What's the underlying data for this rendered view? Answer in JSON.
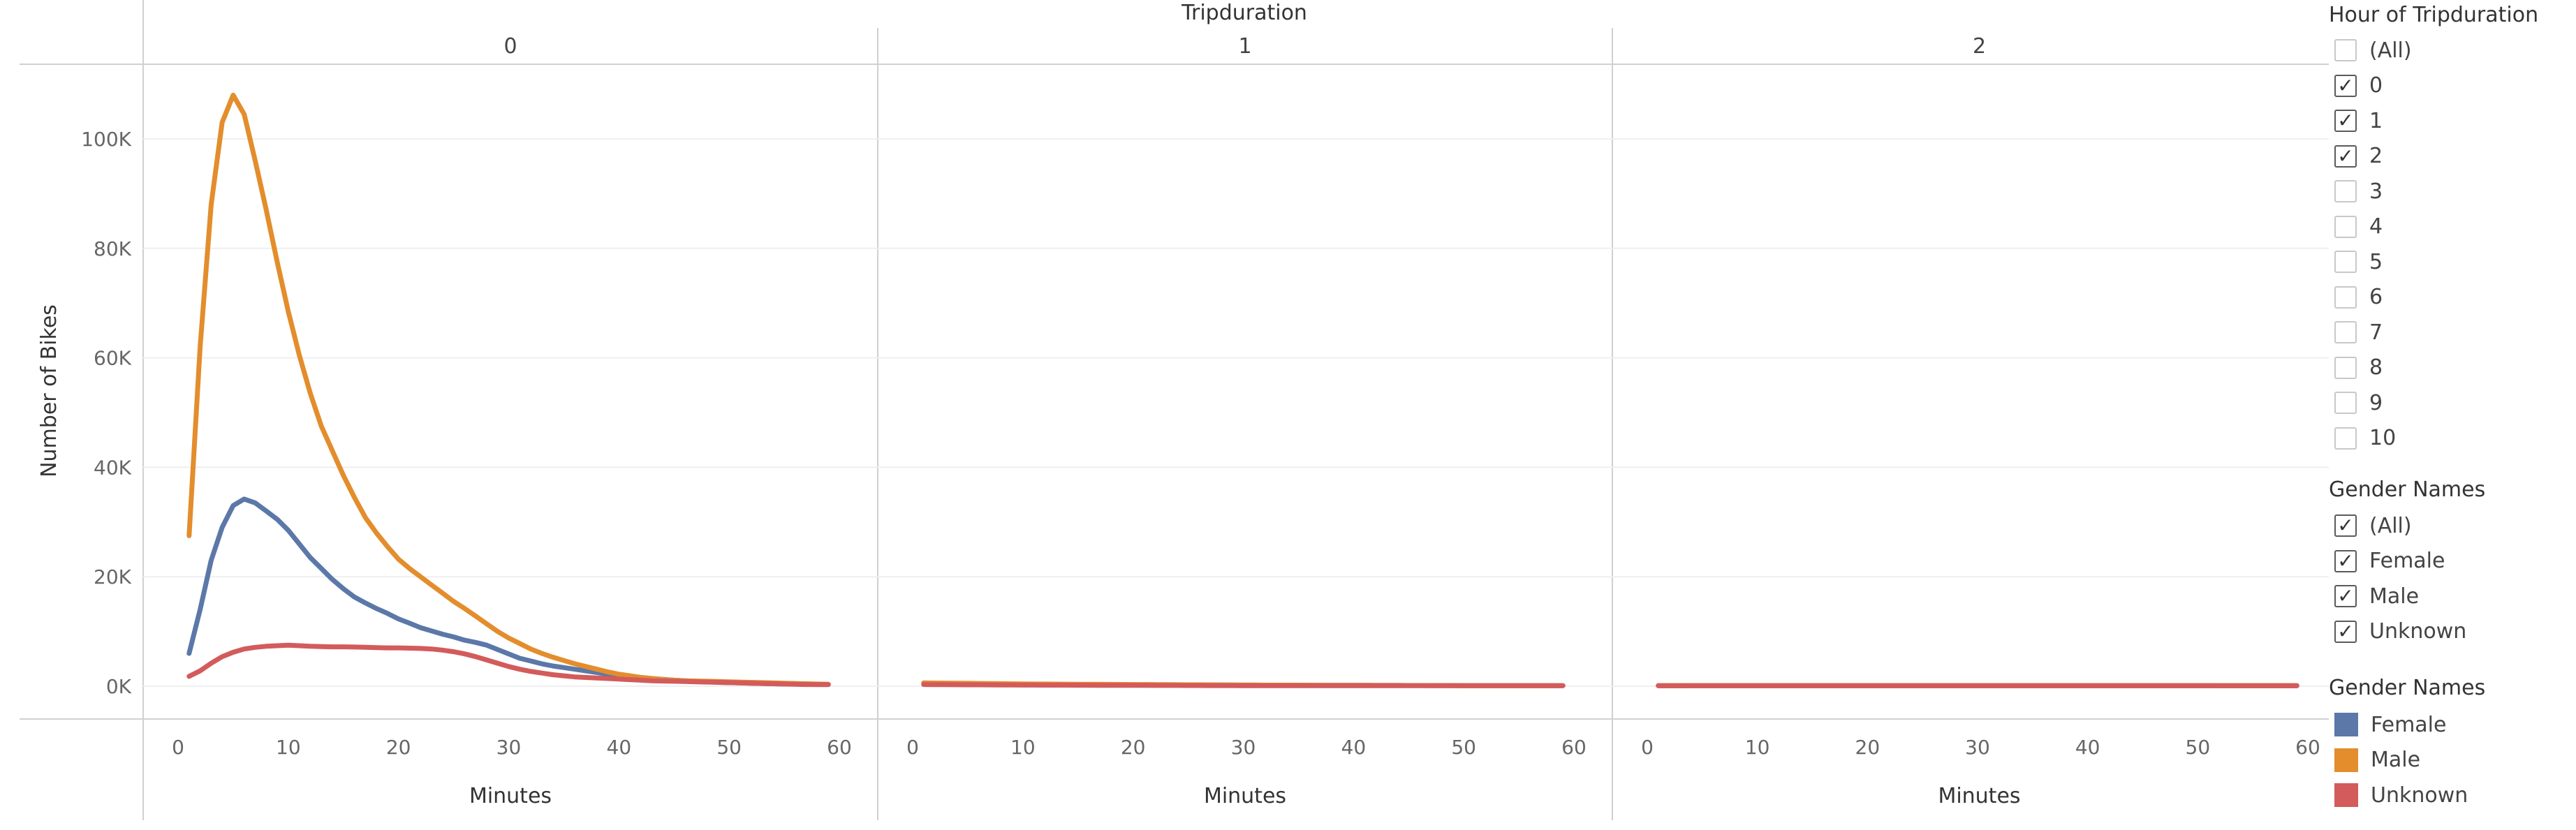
{
  "chart_data": {
    "type": "line",
    "title": "Tripduration",
    "xlabel": "Minutes",
    "ylabel": "Number of Bikes",
    "ylim": [
      0,
      110000
    ],
    "xlim": [
      0,
      60
    ],
    "y_ticks": [
      0,
      20000,
      40000,
      60000,
      80000,
      100000
    ],
    "y_tick_labels": [
      "0K",
      "20K",
      "40K",
      "60K",
      "80K",
      "100K"
    ],
    "x_ticks": [
      0,
      10,
      20,
      30,
      40,
      50,
      60
    ],
    "x_tick_labels": [
      "0",
      "10",
      "20",
      "30",
      "40",
      "50",
      "60"
    ],
    "panels": [
      "0",
      "1",
      "2"
    ],
    "x": [
      1,
      2,
      3,
      4,
      5,
      6,
      7,
      8,
      9,
      10,
      11,
      12,
      13,
      14,
      15,
      16,
      17,
      18,
      19,
      20,
      21,
      22,
      23,
      24,
      25,
      26,
      27,
      28,
      29,
      30,
      31,
      32,
      33,
      34,
      35,
      36,
      37,
      38,
      39,
      40,
      41,
      42,
      43,
      44,
      45,
      46,
      47,
      48,
      49,
      50,
      51,
      52,
      53,
      54,
      55,
      56,
      57,
      58,
      59
    ],
    "series": [
      {
        "name": "Female",
        "panel_values": [
          [
            6000,
            14000,
            23000,
            29000,
            33000,
            34200,
            33500,
            32000,
            30500,
            28500,
            26000,
            23500,
            21500,
            19500,
            17800,
            16300,
            15200,
            14200,
            13300,
            12300,
            11500,
            10700,
            10100,
            9500,
            9000,
            8400,
            8000,
            7500,
            6700,
            5900,
            5100,
            4600,
            4100,
            3700,
            3400,
            3100,
            2800,
            2500,
            2200,
            2000,
            1800,
            1600,
            1400,
            1250,
            1100,
            1000,
            900,
            800,
            700,
            650,
            600,
            550,
            500,
            450,
            400,
            400,
            350,
            300,
            300
          ],
          [
            500,
            480,
            460,
            440,
            420,
            400,
            390,
            380,
            370,
            360,
            350,
            340,
            330,
            320,
            310,
            300,
            290,
            280,
            270,
            260,
            250,
            245,
            240,
            235,
            230,
            225,
            220,
            215,
            210,
            205,
            200,
            195,
            190,
            185,
            180,
            175,
            170,
            165,
            160,
            155,
            150,
            145,
            140,
            135,
            130,
            125,
            120,
            115,
            110,
            105,
            100,
            100,
            100,
            100,
            100,
            100,
            100,
            100,
            100
          ],
          [
            100,
            100,
            100,
            100,
            100,
            100,
            100,
            100,
            100,
            100,
            100,
            100,
            100,
            100,
            100,
            100,
            100,
            100,
            100,
            100,
            100,
            100,
            100,
            100,
            100,
            100,
            100,
            100,
            100,
            100,
            100,
            100,
            100,
            100,
            100,
            100,
            100,
            100,
            100,
            100,
            100,
            100,
            100,
            100,
            100,
            100,
            100,
            100,
            100,
            100,
            100,
            100,
            100,
            100,
            100,
            100,
            100,
            100,
            100
          ]
        ]
      },
      {
        "name": "Male",
        "panel_values": [
          [
            27500,
            62000,
            88000,
            103000,
            108000,
            104500,
            96000,
            87000,
            77500,
            68500,
            60500,
            53500,
            47500,
            43000,
            38500,
            34500,
            30800,
            28000,
            25500,
            23200,
            21500,
            20000,
            18500,
            17000,
            15500,
            14200,
            12800,
            11400,
            10000,
            8800,
            7800,
            6800,
            6000,
            5300,
            4700,
            4100,
            3600,
            3100,
            2600,
            2200,
            1900,
            1600,
            1400,
            1200,
            1100,
            1000,
            950,
            900,
            850,
            800,
            750,
            700,
            650,
            600,
            550,
            500,
            450,
            400,
            350
          ],
          [
            600,
            580,
            560,
            540,
            520,
            500,
            480,
            460,
            440,
            420,
            400,
            390,
            380,
            370,
            360,
            350,
            340,
            330,
            320,
            310,
            300,
            290,
            280,
            270,
            260,
            250,
            240,
            230,
            220,
            210,
            200,
            195,
            190,
            185,
            180,
            175,
            170,
            165,
            160,
            155,
            150,
            145,
            140,
            135,
            130,
            125,
            120,
            115,
            110,
            105,
            100,
            100,
            100,
            100,
            100,
            100,
            100,
            100,
            100
          ],
          [
            120,
            120,
            120,
            120,
            120,
            120,
            120,
            120,
            120,
            120,
            120,
            120,
            120,
            120,
            120,
            120,
            120,
            120,
            120,
            120,
            120,
            120,
            120,
            120,
            120,
            120,
            120,
            120,
            120,
            120,
            120,
            120,
            120,
            120,
            120,
            120,
            120,
            120,
            120,
            120,
            120,
            120,
            120,
            120,
            120,
            120,
            120,
            120,
            120,
            120,
            120,
            120,
            120,
            120,
            120,
            120,
            120,
            120,
            120
          ]
        ]
      },
      {
        "name": "Unknown",
        "panel_values": [
          [
            1800,
            2800,
            4200,
            5400,
            6200,
            6800,
            7100,
            7300,
            7400,
            7500,
            7400,
            7300,
            7250,
            7200,
            7200,
            7150,
            7100,
            7050,
            7000,
            7000,
            6950,
            6900,
            6800,
            6600,
            6300,
            5900,
            5400,
            4800,
            4200,
            3600,
            3100,
            2700,
            2400,
            2100,
            1900,
            1700,
            1600,
            1500,
            1400,
            1300,
            1200,
            1100,
            1000,
            950,
            900,
            850,
            800,
            750,
            700,
            650,
            600,
            550,
            500,
            450,
            400,
            350,
            300,
            300,
            300
          ],
          [
            300,
            290,
            280,
            270,
            260,
            250,
            240,
            230,
            220,
            210,
            200,
            195,
            190,
            185,
            180,
            175,
            170,
            165,
            160,
            155,
            150,
            145,
            140,
            135,
            130,
            125,
            120,
            115,
            110,
            105,
            100,
            100,
            100,
            100,
            100,
            100,
            100,
            100,
            100,
            100,
            100,
            100,
            100,
            100,
            100,
            100,
            100,
            100,
            100,
            100,
            100,
            100,
            100,
            100,
            100,
            100,
            100,
            100,
            100
          ],
          [
            80,
            80,
            80,
            80,
            80,
            80,
            80,
            80,
            80,
            80,
            80,
            80,
            80,
            80,
            80,
            80,
            80,
            80,
            80,
            80,
            80,
            80,
            80,
            80,
            80,
            80,
            80,
            80,
            80,
            80,
            80,
            80,
            80,
            80,
            80,
            80,
            80,
            80,
            80,
            80,
            80,
            80,
            80,
            80,
            80,
            80,
            80,
            80,
            80,
            80,
            80,
            80,
            80,
            80,
            80,
            80,
            80,
            80,
            80
          ]
        ]
      }
    ]
  },
  "colors": {
    "Female": "#5b78a8",
    "Male": "#e38d2c",
    "Unknown": "#d35b5b"
  },
  "filters": {
    "hour": {
      "title": "Hour of Tripduration",
      "items": [
        {
          "label": "(All)",
          "checked": false
        },
        {
          "label": "0",
          "checked": true
        },
        {
          "label": "1",
          "checked": true
        },
        {
          "label": "2",
          "checked": true
        },
        {
          "label": "3",
          "checked": false
        },
        {
          "label": "4",
          "checked": false
        },
        {
          "label": "5",
          "checked": false
        },
        {
          "label": "6",
          "checked": false
        },
        {
          "label": "7",
          "checked": false
        },
        {
          "label": "8",
          "checked": false
        },
        {
          "label": "9",
          "checked": false
        },
        {
          "label": "10",
          "checked": false
        }
      ]
    },
    "gender": {
      "title": "Gender Names",
      "items": [
        {
          "label": "(All)",
          "checked": true
        },
        {
          "label": "Female",
          "checked": true
        },
        {
          "label": "Male",
          "checked": true
        },
        {
          "label": "Unknown",
          "checked": true
        }
      ]
    }
  },
  "legend": {
    "title": "Gender Names",
    "items": [
      {
        "label": "Female",
        "color": "#5b78a8"
      },
      {
        "label": "Male",
        "color": "#e38d2c"
      },
      {
        "label": "Unknown",
        "color": "#d35b5b"
      }
    ]
  }
}
